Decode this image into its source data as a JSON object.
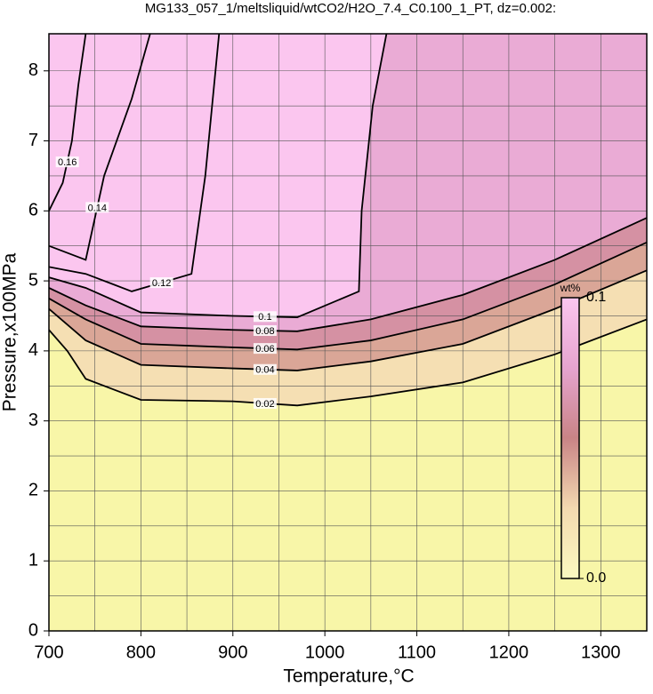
{
  "chart_data": {
    "type": "contour",
    "title": "MG133_057_1/meltsliquid/wtCO2/H2O_7.4_C0.100_1_PT, dz=0.002:",
    "xlabel": "Temperature,°C",
    "ylabel": "Pressure,x100MPa",
    "xlim": [
      700,
      1350
    ],
    "ylim": [
      0,
      8.53
    ],
    "xticks": [
      700,
      800,
      900,
      1000,
      1100,
      1200,
      1300
    ],
    "yticks": [
      0,
      1,
      2,
      3,
      4,
      5,
      6,
      7,
      8
    ],
    "grid": true,
    "xgrid": [
      700,
      750,
      800,
      850,
      900,
      950,
      1000,
      1050,
      1100,
      1150,
      1200,
      1250,
      1300,
      1350
    ],
    "ygrid": [
      0.5,
      1,
      1.5,
      2,
      2.5,
      3,
      3.5,
      4,
      4.5,
      5,
      5.5,
      6,
      6.5,
      7,
      7.5,
      8
    ],
    "background": "#f8f6a8",
    "colormap": [
      "#fbf9c0",
      "#f3d9b0",
      "#c98486",
      "#e6a4cf",
      "#fbc6ef"
    ],
    "colorbar": {
      "label": "wt%",
      "lim": [
        0,
        0.1
      ],
      "ticks": [
        {
          "value": 0,
          "label": "0.0"
        },
        0.1
      ]
    },
    "contours": [
      {
        "level": 0.02,
        "x": [
          700,
          720,
          740,
          800,
          900,
          970,
          1050,
          1150,
          1250,
          1350
        ],
        "y": [
          4.3,
          4.0,
          3.6,
          3.3,
          3.28,
          3.22,
          3.35,
          3.55,
          3.95,
          4.45
        ]
      },
      {
        "level": 0.04,
        "x": [
          700,
          740,
          800,
          900,
          970,
          1050,
          1150,
          1250,
          1350
        ],
        "y": [
          4.6,
          4.15,
          3.8,
          3.75,
          3.72,
          3.85,
          4.1,
          4.6,
          5.15
        ]
      },
      {
        "level": 0.06,
        "x": [
          700,
          740,
          800,
          900,
          970,
          1050,
          1150,
          1250,
          1350
        ],
        "y": [
          4.75,
          4.45,
          4.1,
          4.05,
          4.02,
          4.15,
          4.45,
          4.95,
          5.55
        ]
      },
      {
        "level": 0.08,
        "x": [
          700,
          740,
          800,
          900,
          970,
          1050,
          1150,
          1250,
          1350
        ],
        "y": [
          4.9,
          4.65,
          4.35,
          4.3,
          4.28,
          4.45,
          4.8,
          5.3,
          5.9
        ]
      },
      {
        "level": 0.1,
        "x": [
          700,
          740,
          800,
          900,
          970,
          1037,
          1040,
          1052,
          1067
        ],
        "y": [
          5.05,
          4.9,
          4.55,
          4.5,
          4.48,
          4.85,
          6.0,
          7.5,
          8.53
        ]
      },
      {
        "level": 0.12,
        "x": [
          700,
          740,
          790,
          855,
          870,
          885
        ],
        "y": [
          5.2,
          5.1,
          4.85,
          5.1,
          6.5,
          8.53
        ]
      },
      {
        "level": 0.14,
        "x": [
          700,
          740,
          745,
          760,
          790,
          810
        ],
        "y": [
          5.5,
          5.3,
          5.6,
          6.5,
          7.6,
          8.53
        ]
      },
      {
        "level": 0.16,
        "x": [
          700,
          715,
          725,
          732,
          740
        ],
        "y": [
          6.0,
          6.4,
          7.0,
          7.8,
          8.53
        ]
      }
    ]
  }
}
